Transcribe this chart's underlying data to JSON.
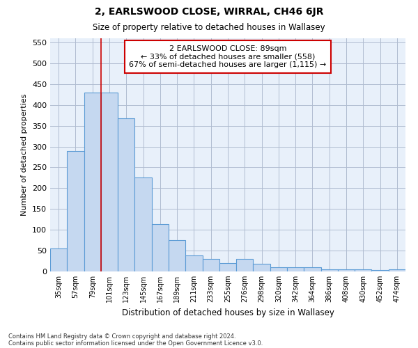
{
  "title": "2, EARLSWOOD CLOSE, WIRRAL, CH46 6JR",
  "subtitle": "Size of property relative to detached houses in Wallasey",
  "xlabel": "Distribution of detached houses by size in Wallasey",
  "ylabel": "Number of detached properties",
  "categories": [
    "35sqm",
    "57sqm",
    "79sqm",
    "101sqm",
    "123sqm",
    "145sqm",
    "167sqm",
    "189sqm",
    "211sqm",
    "233sqm",
    "255sqm",
    "276sqm",
    "298sqm",
    "320sqm",
    "342sqm",
    "364sqm",
    "386sqm",
    "408sqm",
    "430sqm",
    "452sqm",
    "474sqm"
  ],
  "values": [
    55,
    290,
    430,
    430,
    368,
    225,
    113,
    76,
    38,
    30,
    20,
    30,
    18,
    10,
    10,
    10,
    5,
    5,
    5,
    3,
    5
  ],
  "bar_color": "#c5d8f0",
  "bar_edge_color": "#5b9bd5",
  "bar_linewidth": 0.8,
  "grid_color": "#b0bcd0",
  "background_color": "#e8f0fa",
  "red_line_x": 2.5,
  "annotation_title": "2 EARLSWOOD CLOSE: 89sqm",
  "annotation_line1": "← 33% of detached houses are smaller (558)",
  "annotation_line2": "67% of semi-detached houses are larger (1,115) →",
  "annotation_box_facecolor": "#ffffff",
  "annotation_box_edgecolor": "#cc0000",
  "red_line_color": "#cc0000",
  "ylim": [
    0,
    560
  ],
  "yticks": [
    0,
    50,
    100,
    150,
    200,
    250,
    300,
    350,
    400,
    450,
    500,
    550
  ],
  "footnote1": "Contains HM Land Registry data © Crown copyright and database right 2024.",
  "footnote2": "Contains public sector information licensed under the Open Government Licence v3.0."
}
